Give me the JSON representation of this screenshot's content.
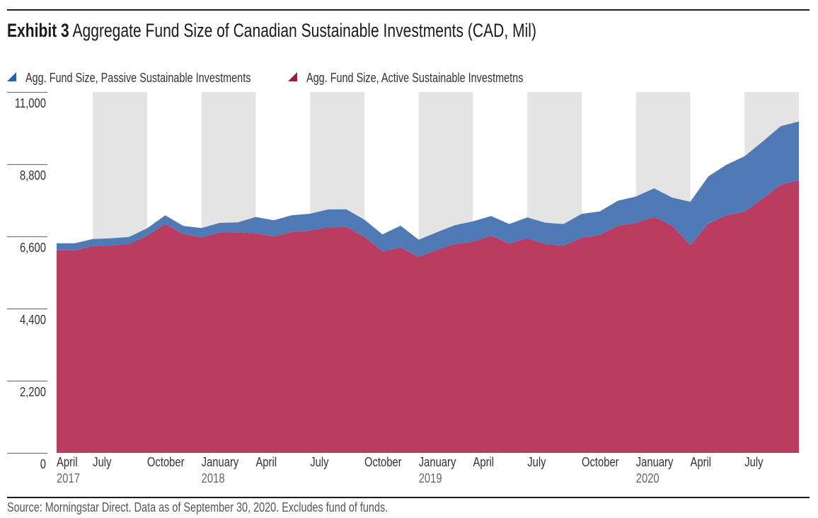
{
  "header": {
    "exhibit_label": "Exhibit 3",
    "title": "Aggregate Fund Size of Canadian Sustainable Investments (CAD, Mil)"
  },
  "footer": {
    "source": "Source: Morningstar Direct. Data as of September 30, 2020. Excludes fund of funds."
  },
  "colors": {
    "passive": "#4a76b4",
    "active": "#b8365c",
    "passive_legend": "#2f5ea8",
    "active_legend": "#a8173f",
    "band": "#e4e4e4"
  },
  "chart_data": {
    "type": "area",
    "stacked": true,
    "title": "Aggregate Fund Size of Canadian Sustainable Investments (CAD, Mil)",
    "xlabel": "",
    "ylabel": "",
    "ylim": [
      0,
      11000
    ],
    "yticks": [
      0,
      2200,
      4400,
      6600,
      8800,
      11000
    ],
    "ytick_labels": [
      "0",
      "2,200",
      "4,400",
      "6,600",
      "8,800",
      "11,000"
    ],
    "legend_position": "top-left",
    "x": [
      "2017-04",
      "2017-05",
      "2017-06",
      "2017-07",
      "2017-08",
      "2017-09",
      "2017-10",
      "2017-11",
      "2017-12",
      "2018-01",
      "2018-02",
      "2018-03",
      "2018-04",
      "2018-05",
      "2018-06",
      "2018-07",
      "2018-08",
      "2018-09",
      "2018-10",
      "2018-11",
      "2018-12",
      "2019-01",
      "2019-02",
      "2019-03",
      "2019-04",
      "2019-05",
      "2019-06",
      "2019-07",
      "2019-08",
      "2019-09",
      "2019-10",
      "2019-11",
      "2019-12",
      "2020-01",
      "2020-02",
      "2020-03",
      "2020-04",
      "2020-05",
      "2020-06",
      "2020-07",
      "2020-08",
      "2020-09"
    ],
    "xtick_labels": [
      {
        "index": 0,
        "label": "April",
        "year": "2017"
      },
      {
        "index": 2,
        "label": "July",
        "year": ""
      },
      {
        "index": 5,
        "label": "October",
        "year": ""
      },
      {
        "index": 8,
        "label": "January",
        "year": "2018"
      },
      {
        "index": 11,
        "label": "April",
        "year": ""
      },
      {
        "index": 14,
        "label": "July",
        "year": ""
      },
      {
        "index": 17,
        "label": "October",
        "year": ""
      },
      {
        "index": 20,
        "label": "January",
        "year": "2019"
      },
      {
        "index": 23,
        "label": "April",
        "year": ""
      },
      {
        "index": 26,
        "label": "July",
        "year": ""
      },
      {
        "index": 29,
        "label": "October",
        "year": ""
      },
      {
        "index": 32,
        "label": "January",
        "year": "2020"
      },
      {
        "index": 35,
        "label": "April",
        "year": ""
      },
      {
        "index": 38,
        "label": "July",
        "year": ""
      }
    ],
    "shaded_bands": [
      [
        2,
        5
      ],
      [
        8,
        11
      ],
      [
        14,
        17
      ],
      [
        20,
        23
      ],
      [
        26,
        29
      ],
      [
        32,
        35
      ],
      [
        38,
        41
      ]
    ],
    "series": [
      {
        "name": "Agg. Fund Size, Active Sustainable Investmetns",
        "values": [
          6170,
          6170,
          6300,
          6320,
          6360,
          6615,
          6975,
          6665,
          6570,
          6715,
          6725,
          6690,
          6595,
          6735,
          6775,
          6875,
          6885,
          6580,
          6140,
          6260,
          5970,
          6185,
          6365,
          6435,
          6615,
          6380,
          6540,
          6360,
          6315,
          6555,
          6645,
          6920,
          7010,
          7185,
          6920,
          6325,
          6990,
          7240,
          7355,
          7750,
          8175,
          8305
        ]
      },
      {
        "name": "Agg. Fund Size, Passive Sustainable Investments",
        "values": [
          220,
          220,
          220,
          220,
          220,
          230,
          265,
          255,
          285,
          295,
          300,
          500,
          495,
          510,
          515,
          545,
          540,
          530,
          520,
          665,
          525,
          540,
          575,
          625,
          605,
          595,
          635,
          655,
          660,
          730,
          715,
          765,
          805,
          880,
          860,
          1330,
          1440,
          1545,
          1685,
          1740,
          1785,
          1795
        ]
      }
    ]
  }
}
